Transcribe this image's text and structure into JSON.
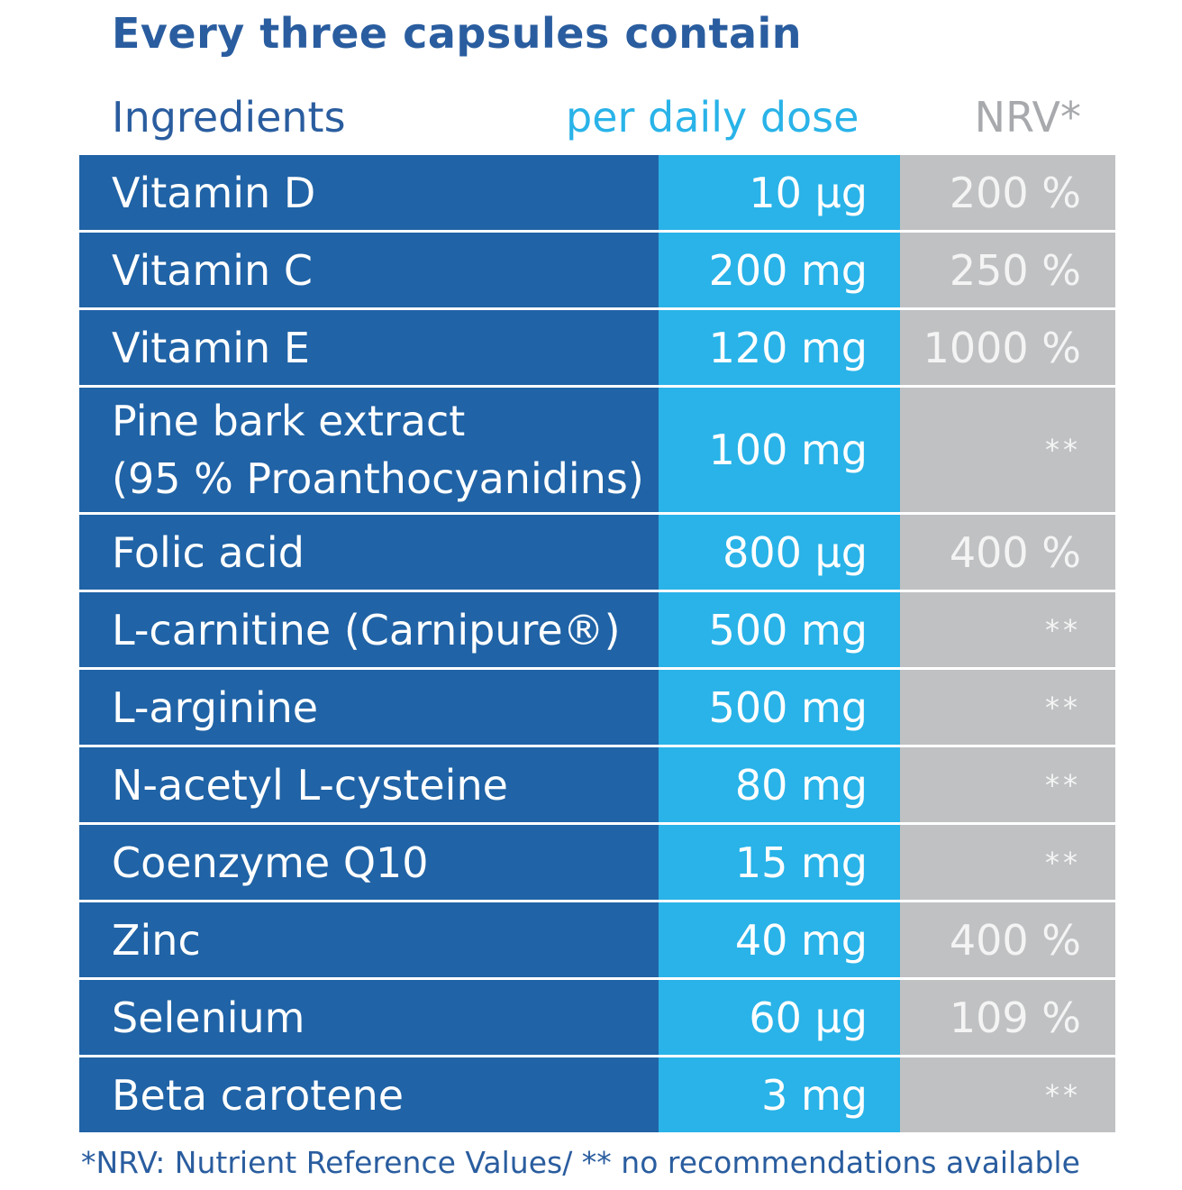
{
  "title": "Every three capsules contain",
  "headers": {
    "ingredients": "Ingredients",
    "dose": "per daily dose",
    "nrv": "NRV*"
  },
  "rows": [
    {
      "name": "Vitamin D",
      "dose": "10 µg",
      "nrv": "200 %"
    },
    {
      "name": "Vitamin C",
      "dose": "200 mg",
      "nrv": "250 %"
    },
    {
      "name": "Vitamin E",
      "dose": "120 mg",
      "nrv": "1000 %"
    },
    {
      "name": "Pine bark extract",
      "name2": "(95 % Proanthocyanidins)",
      "dose": "100 mg",
      "nrv": "**"
    },
    {
      "name": "Folic acid",
      "dose": "800 µg",
      "nrv": "400 %"
    },
    {
      "name": "L-carnitine (Carnipure®)",
      "dose": "500 mg",
      "nrv": "**"
    },
    {
      "name": "L-arginine",
      "dose": "500 mg",
      "nrv": "**"
    },
    {
      "name": "N-acetyl L-cysteine",
      "dose": "80 mg",
      "nrv": "**"
    },
    {
      "name": "Coenzyme Q10",
      "dose": "15 mg",
      "nrv": "**"
    },
    {
      "name": "Zinc",
      "dose": "40 mg",
      "nrv": "400 %"
    },
    {
      "name": "Selenium",
      "dose": "60 µg",
      "nrv": "109 %"
    },
    {
      "name": "Beta carotene",
      "dose": "3 mg",
      "nrv": "**"
    }
  ],
  "footnote": "*NRV: Nutrient Reference Values/ ** no recommendations available",
  "colors": {
    "dark_blue": "#2063a6",
    "light_blue": "#29b3e8",
    "grey": "#bfc1c3"
  }
}
